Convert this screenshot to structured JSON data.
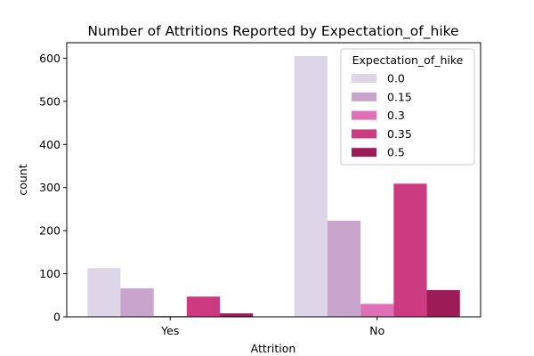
{
  "chart_data": {
    "type": "bar",
    "title": "Number of Attritions Reported by Expectation_of_hike",
    "xlabel": "Attrition",
    "ylabel": "count",
    "categories": [
      "Yes",
      "No"
    ],
    "ylim": [
      0,
      636
    ],
    "yticks": [
      0,
      100,
      200,
      300,
      400,
      500,
      600
    ],
    "grid": false,
    "legend": {
      "title": "Expectation_of_hike",
      "position": "top-right"
    },
    "series": [
      {
        "name": "0.0",
        "color": "#dfd5e9",
        "values": [
          113,
          605
        ]
      },
      {
        "name": "0.15",
        "color": "#c9a4cd",
        "values": [
          66,
          223
        ]
      },
      {
        "name": "0.3",
        "color": "#dd70b7",
        "values": [
          2,
          30
        ]
      },
      {
        "name": "0.35",
        "color": "#cc3a81",
        "values": [
          47,
          309
        ]
      },
      {
        "name": "0.5",
        "color": "#9c1c58",
        "values": [
          8,
          62
        ]
      }
    ]
  }
}
